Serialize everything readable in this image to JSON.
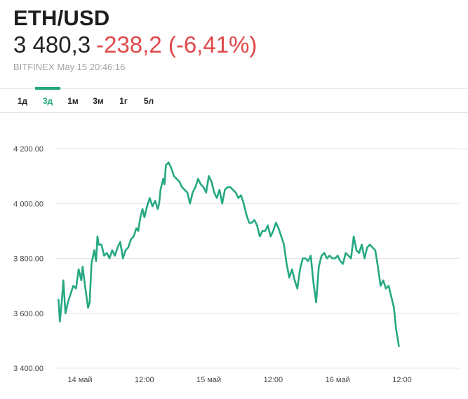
{
  "header": {
    "symbol": "ETH/USD",
    "price": "3 480,3",
    "change": "-238,2 (-6,41%)",
    "exchange": "BITFINEX",
    "timestamp": "May 15 20:46:16"
  },
  "tabs": [
    {
      "label": "1д",
      "active": false
    },
    {
      "label": "3д",
      "active": true
    },
    {
      "label": "1м",
      "active": false
    },
    {
      "label": "3м",
      "active": false
    },
    {
      "label": "1г",
      "active": false
    },
    {
      "label": "5л",
      "active": false
    }
  ],
  "colors": {
    "line": "#26a882",
    "negative": "#e0484a",
    "grid": "#e6e6e6"
  },
  "chart_data": {
    "type": "line",
    "grid": "horizontal",
    "ylim": [
      3400,
      4200
    ],
    "yticks": [
      3400,
      3600,
      3800,
      4000,
      4200
    ],
    "ytick_labels": [
      "3 400.00",
      "3 600.00",
      "3 800.00",
      "4 000.00",
      "4 200.00"
    ],
    "xlim": [
      -10,
      139
    ],
    "xticks": [
      {
        "x": 0,
        "label": "14 май"
      },
      {
        "x": 24,
        "label": "12:00"
      },
      {
        "x": 48,
        "label": "15 май"
      },
      {
        "x": 72,
        "label": "12:00"
      },
      {
        "x": 96,
        "label": "16 май"
      },
      {
        "x": 120,
        "label": "12:00"
      }
    ],
    "series": [
      {
        "points": [
          [
            -8.0,
            3650
          ],
          [
            -7.5,
            3570
          ],
          [
            -6.8,
            3640
          ],
          [
            -6.2,
            3720
          ],
          [
            -5.4,
            3600
          ],
          [
            -4.5,
            3640
          ],
          [
            -3.5,
            3670
          ],
          [
            -2.5,
            3700
          ],
          [
            -1.5,
            3690
          ],
          [
            -0.5,
            3760
          ],
          [
            0.5,
            3720
          ],
          [
            1.0,
            3770
          ],
          [
            2.0,
            3690
          ],
          [
            3.0,
            3620
          ],
          [
            3.6,
            3640
          ],
          [
            4.3,
            3780
          ],
          [
            5.3,
            3830
          ],
          [
            6.0,
            3790
          ],
          [
            6.5,
            3880
          ],
          [
            7.0,
            3850
          ],
          [
            8.0,
            3850
          ],
          [
            9.0,
            3810
          ],
          [
            10.0,
            3820
          ],
          [
            11.0,
            3800
          ],
          [
            12.0,
            3830
          ],
          [
            13.0,
            3810
          ],
          [
            14.0,
            3840
          ],
          [
            15.0,
            3860
          ],
          [
            16.0,
            3800
          ],
          [
            17.0,
            3830
          ],
          [
            18.0,
            3840
          ],
          [
            19.0,
            3870
          ],
          [
            20.0,
            3880
          ],
          [
            21.0,
            3910
          ],
          [
            21.7,
            3900
          ],
          [
            22.5,
            3950
          ],
          [
            23.3,
            3980
          ],
          [
            24.0,
            3950
          ],
          [
            25.0,
            3990
          ],
          [
            26.0,
            4020
          ],
          [
            27.0,
            3990
          ],
          [
            28.0,
            4010
          ],
          [
            29.0,
            3980
          ],
          [
            29.5,
            4000
          ],
          [
            30.0,
            4050
          ],
          [
            31.0,
            4090
          ],
          [
            31.5,
            4070
          ],
          [
            32.0,
            4140
          ],
          [
            33.0,
            4150
          ],
          [
            34.0,
            4130
          ],
          [
            35.0,
            4100
          ],
          [
            36.0,
            4090
          ],
          [
            37.0,
            4080
          ],
          [
            38.0,
            4060
          ],
          [
            39.0,
            4050
          ],
          [
            40.0,
            4040
          ],
          [
            41.0,
            4000
          ],
          [
            42.0,
            4040
          ],
          [
            43.0,
            4060
          ],
          [
            44.0,
            4090
          ],
          [
            45.0,
            4070
          ],
          [
            46.0,
            4060
          ],
          [
            47.0,
            4040
          ],
          [
            48.0,
            4100
          ],
          [
            49.0,
            4080
          ],
          [
            50.0,
            4040
          ],
          [
            51.0,
            4020
          ],
          [
            52.0,
            4050
          ],
          [
            53.0,
            4000
          ],
          [
            54.0,
            4050
          ],
          [
            55.0,
            4060
          ],
          [
            56.0,
            4060
          ],
          [
            57.0,
            4050
          ],
          [
            58.0,
            4040
          ],
          [
            59.0,
            4020
          ],
          [
            60.0,
            4030
          ],
          [
            61.0,
            4000
          ],
          [
            62.0,
            3960
          ],
          [
            63.0,
            3930
          ],
          [
            64.0,
            3930
          ],
          [
            65.0,
            3940
          ],
          [
            66.0,
            3920
          ],
          [
            67.0,
            3880
          ],
          [
            68.0,
            3900
          ],
          [
            69.0,
            3900
          ],
          [
            70.0,
            3920
          ],
          [
            71.0,
            3880
          ],
          [
            72.0,
            3900
          ],
          [
            73.0,
            3930
          ],
          [
            74.0,
            3910
          ],
          [
            75.0,
            3880
          ],
          [
            76.0,
            3850
          ],
          [
            77.0,
            3780
          ],
          [
            78.0,
            3730
          ],
          [
            79.0,
            3760
          ],
          [
            80.0,
            3720
          ],
          [
            81.0,
            3690
          ],
          [
            82.0,
            3760
          ],
          [
            83.0,
            3800
          ],
          [
            84.0,
            3800
          ],
          [
            85.0,
            3790
          ],
          [
            86.0,
            3810
          ],
          [
            87.0,
            3710
          ],
          [
            88.0,
            3640
          ],
          [
            89.0,
            3770
          ],
          [
            90.0,
            3810
          ],
          [
            91.0,
            3820
          ],
          [
            92.0,
            3800
          ],
          [
            93.0,
            3810
          ],
          [
            94.0,
            3800
          ],
          [
            95.0,
            3800
          ],
          [
            96.0,
            3810
          ],
          [
            97.0,
            3790
          ],
          [
            98.0,
            3780
          ],
          [
            99.0,
            3820
          ],
          [
            100.0,
            3810
          ],
          [
            101.0,
            3800
          ],
          [
            102.0,
            3880
          ],
          [
            103.0,
            3830
          ],
          [
            104.0,
            3820
          ],
          [
            105.0,
            3850
          ],
          [
            106.0,
            3800
          ],
          [
            107.0,
            3840
          ],
          [
            108.0,
            3850
          ],
          [
            109.0,
            3840
          ],
          [
            110.0,
            3830
          ],
          [
            111.0,
            3770
          ],
          [
            112.0,
            3700
          ],
          [
            113.0,
            3720
          ],
          [
            114.0,
            3690
          ],
          [
            115.0,
            3700
          ],
          [
            116.0,
            3660
          ],
          [
            117.0,
            3620
          ],
          [
            117.8,
            3540
          ],
          [
            118.5,
            3500
          ],
          [
            118.8,
            3480
          ]
        ]
      }
    ]
  }
}
